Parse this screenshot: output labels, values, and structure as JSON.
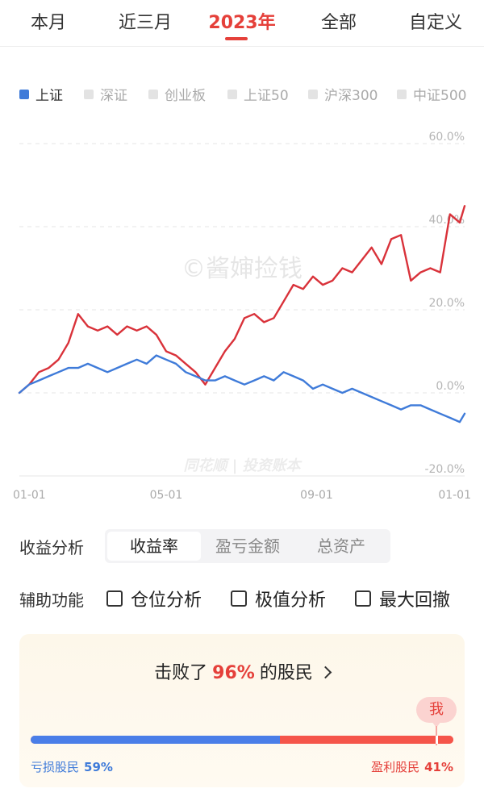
{
  "tabs": [
    {
      "label": "本月",
      "active": false
    },
    {
      "label": "近三月",
      "active": false
    },
    {
      "label": "2023年",
      "active": true
    },
    {
      "label": "全部",
      "active": false
    },
    {
      "label": "自定义",
      "active": false
    }
  ],
  "legend": [
    {
      "label": "上证",
      "active": true
    },
    {
      "label": "深证",
      "active": false
    },
    {
      "label": "创业板",
      "active": false
    },
    {
      "label": "上证50",
      "active": false
    },
    {
      "label": "沪深300",
      "active": false
    },
    {
      "label": "中证500",
      "active": false
    }
  ],
  "watermarks": {
    "primary": "©酱婶捡钱",
    "secondary": "同花顺 | 投资账本"
  },
  "chart_data": {
    "type": "line",
    "ylim": [
      -20,
      60
    ],
    "yticks": [
      "60.0%",
      "40.0%",
      "20.0%",
      "0.0%",
      "-20.0%"
    ],
    "yticks_values": [
      60,
      40,
      20,
      0,
      -20
    ],
    "x_labels": [
      "01-01",
      "05-01",
      "09-01",
      "01-01"
    ],
    "x_labels_values": [
      "2023-01-01",
      "2023-05-01",
      "2023-09-01",
      "2024-01-01"
    ],
    "x_range": [
      "2023-01-01",
      "2023-12-31"
    ],
    "grid": true,
    "colors": {
      "portfolio": "#d9323a",
      "index": "#3f7bd9"
    },
    "series": [
      {
        "key": "portfolio",
        "x": [
          "2023-01-01",
          "2023-01-09",
          "2023-01-17",
          "2023-01-25",
          "2023-02-02",
          "2023-02-10",
          "2023-02-18",
          "2023-02-26",
          "2023-03-06",
          "2023-03-14",
          "2023-03-22",
          "2023-03-30",
          "2023-04-07",
          "2023-04-15",
          "2023-04-23",
          "2023-05-01",
          "2023-05-09",
          "2023-05-17",
          "2023-05-25",
          "2023-06-02",
          "2023-06-10",
          "2023-06-18",
          "2023-06-26",
          "2023-07-04",
          "2023-07-12",
          "2023-07-20",
          "2023-07-28",
          "2023-08-05",
          "2023-08-13",
          "2023-08-21",
          "2023-08-29",
          "2023-09-06",
          "2023-09-14",
          "2023-09-22",
          "2023-09-30",
          "2023-10-08",
          "2023-10-16",
          "2023-10-24",
          "2023-11-01",
          "2023-11-09",
          "2023-11-17",
          "2023-11-25",
          "2023-12-03",
          "2023-12-11",
          "2023-12-19",
          "2023-12-27",
          "2023-12-31"
        ],
        "values": [
          0,
          2,
          5,
          6,
          8,
          12,
          19,
          16,
          15,
          16,
          14,
          16,
          15,
          16,
          14,
          10,
          9,
          7,
          5,
          2,
          6,
          10,
          13,
          18,
          19,
          17,
          18,
          22,
          26,
          25,
          28,
          26,
          27,
          30,
          29,
          32,
          35,
          31,
          37,
          38,
          27,
          29,
          30,
          29,
          43,
          41,
          45
        ]
      },
      {
        "key": "index",
        "x": [
          "2023-01-01",
          "2023-01-09",
          "2023-01-17",
          "2023-01-25",
          "2023-02-02",
          "2023-02-10",
          "2023-02-18",
          "2023-02-26",
          "2023-03-06",
          "2023-03-14",
          "2023-03-22",
          "2023-03-30",
          "2023-04-07",
          "2023-04-15",
          "2023-04-23",
          "2023-05-01",
          "2023-05-09",
          "2023-05-17",
          "2023-05-25",
          "2023-06-02",
          "2023-06-10",
          "2023-06-18",
          "2023-06-26",
          "2023-07-04",
          "2023-07-12",
          "2023-07-20",
          "2023-07-28",
          "2023-08-05",
          "2023-08-13",
          "2023-08-21",
          "2023-08-29",
          "2023-09-06",
          "2023-09-14",
          "2023-09-22",
          "2023-09-30",
          "2023-10-08",
          "2023-10-16",
          "2023-10-24",
          "2023-11-01",
          "2023-11-09",
          "2023-11-17",
          "2023-11-25",
          "2023-12-03",
          "2023-12-11",
          "2023-12-19",
          "2023-12-27",
          "2023-12-31"
        ],
        "values": [
          0,
          2,
          3,
          4,
          5,
          6,
          6,
          7,
          6,
          5,
          6,
          7,
          8,
          7,
          9,
          8,
          7,
          5,
          4,
          3,
          3,
          4,
          3,
          2,
          3,
          4,
          3,
          5,
          4,
          3,
          1,
          2,
          1,
          0,
          1,
          0,
          -1,
          -2,
          -3,
          -4,
          -3,
          -3,
          -4,
          -5,
          -6,
          -7,
          -5
        ]
      }
    ]
  },
  "analysis": {
    "label": "收益分析",
    "options": [
      {
        "label": "收益率",
        "active": true
      },
      {
        "label": "盈亏金额",
        "active": false
      },
      {
        "label": "总资产",
        "active": false
      }
    ]
  },
  "aux": {
    "label": "辅助功能",
    "options": [
      {
        "label": "仓位分析",
        "checked": false
      },
      {
        "label": "极值分析",
        "checked": false
      },
      {
        "label": "最大回撤",
        "checked": false
      }
    ]
  },
  "ranking": {
    "prefix": "击败了",
    "percent": "96%",
    "suffix": "的股民",
    "beat_fraction": 0.96,
    "me_label": "我",
    "loss_label": "亏损股民",
    "loss_percent": "59%",
    "loss_fraction": 0.59,
    "profit_label": "盈利股民",
    "profit_percent": "41%",
    "profit_fraction": 0.41
  }
}
